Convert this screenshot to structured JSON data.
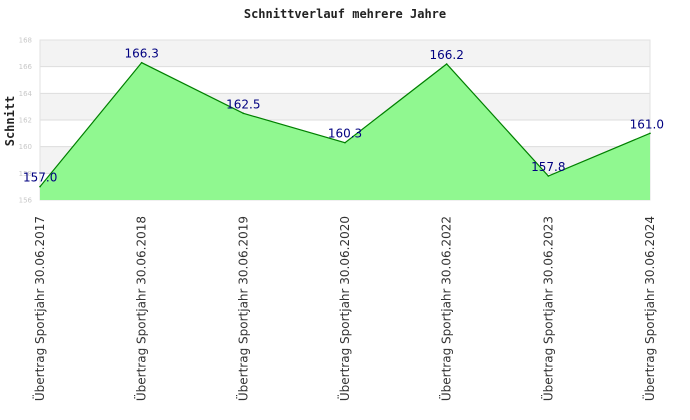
{
  "chart_data": {
    "type": "area",
    "title": "Schnittverlauf mehrere Jahre",
    "ylabel": "Schnitt",
    "xlabel": "",
    "categories": [
      "Übertrag Sportjahr 30.06.2017",
      "Übertrag Sportjahr 30.06.2018",
      "Übertrag Sportjahr 30.06.2019",
      "Übertrag Sportjahr 30.06.2020",
      "Übertrag Sportjahr 30.06.2022",
      "Übertrag Sportjahr 30.06.2023",
      "Übertrag Sportjahr 30.06.2024"
    ],
    "values": [
      157.0,
      166.3,
      162.5,
      160.3,
      166.2,
      157.8,
      161.0
    ],
    "data_labels": [
      "157.0",
      "166.3",
      "162.5",
      "160.3",
      "166.2",
      "157.8",
      "161.0"
    ],
    "ylim": [
      156,
      168
    ],
    "yticks": [
      "156",
      "158",
      "160",
      "162",
      "164",
      "166",
      "168"
    ],
    "grid": true,
    "legend": "none",
    "colors": {
      "fill": "#90f890",
      "line": "#008000",
      "data_label": "#000080",
      "band_light": "#f3f3f3",
      "band_white": "#ffffff"
    }
  }
}
